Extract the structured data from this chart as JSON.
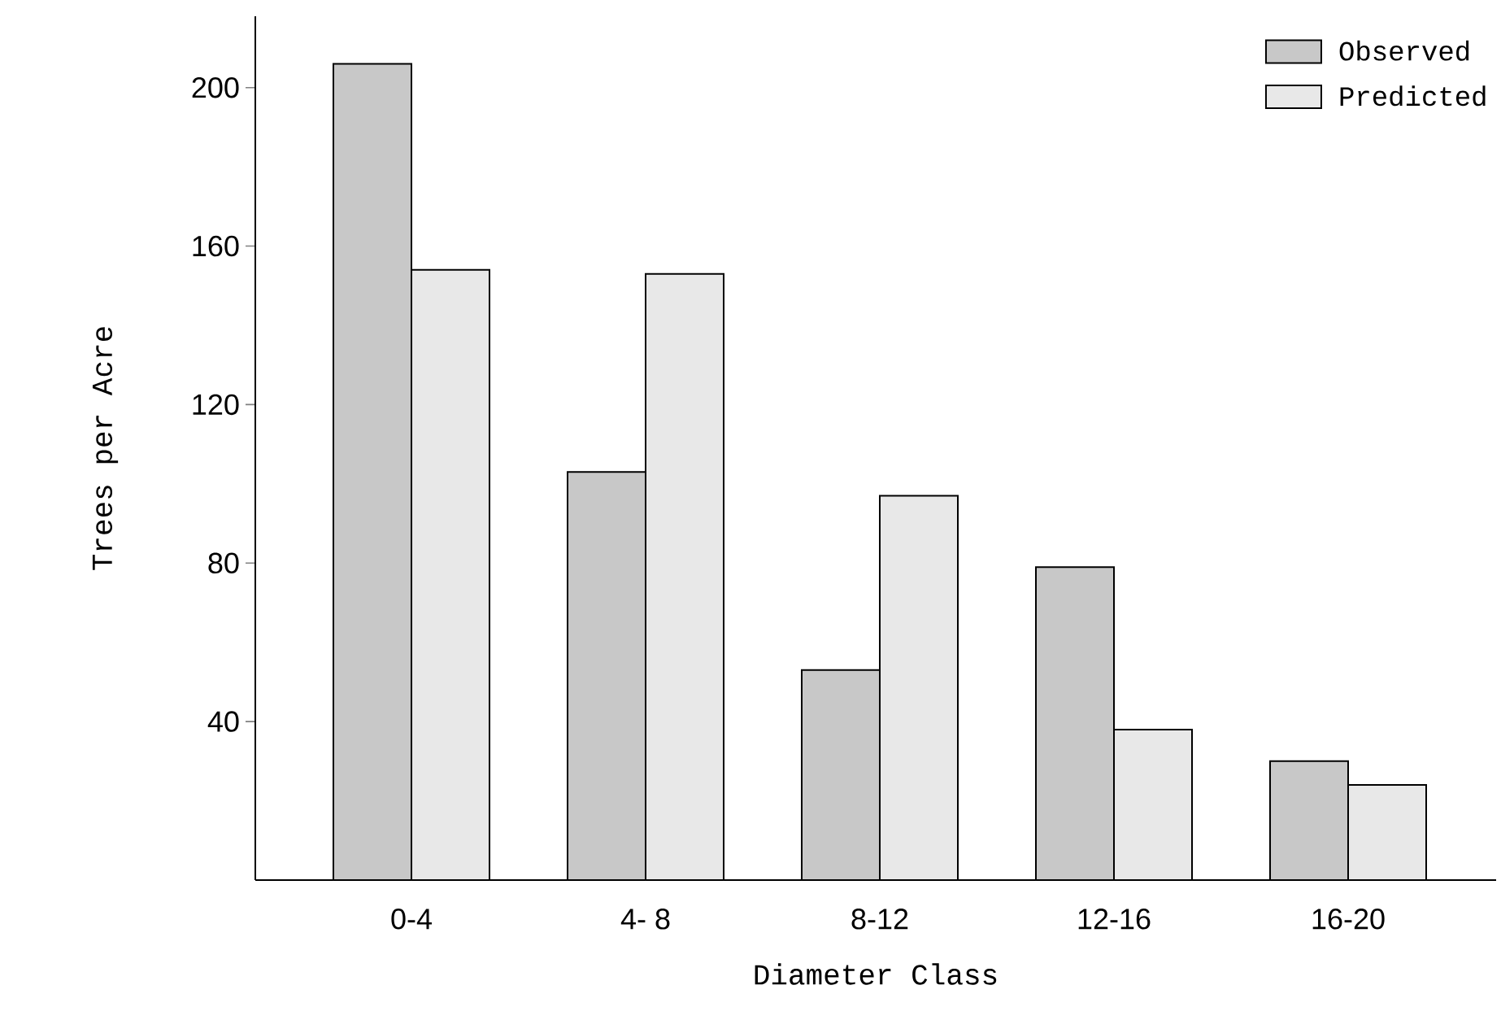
{
  "chart_data": {
    "type": "bar",
    "xlabel": "Diameter Class",
    "ylabel": "Trees per Acre",
    "categories": [
      "0-4",
      "4- 8",
      "8-12",
      "12-16",
      "16-20"
    ],
    "series": [
      {
        "name": "Observed",
        "color": "#c8c8c8",
        "values": [
          206,
          103,
          53,
          79,
          30
        ]
      },
      {
        "name": "Predicted",
        "color": "#e8e8e8",
        "values": [
          154,
          153,
          97,
          38,
          24
        ]
      }
    ],
    "ylim": [
      0,
      218
    ],
    "yticks": [
      40,
      80,
      120,
      160,
      200
    ],
    "grid": false,
    "legend": "top right"
  }
}
